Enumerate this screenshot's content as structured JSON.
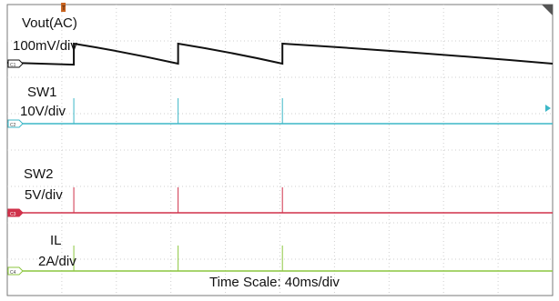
{
  "chart_data": {
    "type": "line",
    "title": "",
    "xlabel": "Time Scale: 40ms/div",
    "time_per_div_ms": 40,
    "x_divisions": 10,
    "y_divisions": 8,
    "x_range_ms": [
      0,
      400
    ],
    "grid": true,
    "trigger_marker": "T",
    "channels": [
      {
        "id": "C1",
        "badge": "C1",
        "name": "Vout(AC)",
        "scale": "100mV/div",
        "color": "#111111",
        "waveform": "sawtooth",
        "dip_times_ms": [
          0,
          48.8,
          125.3,
          201.8
        ],
        "jump_div": 0.55,
        "decay_div": 0.55
      },
      {
        "id": "C2",
        "badge": "C2",
        "name": "SW1",
        "scale": "10V/div",
        "color": "#3cb7c7",
        "waveform": "pulses",
        "pulse_times_ms": [
          48.8,
          125.3,
          201.8
        ],
        "pulse_height_div": 0.7,
        "arrow": "right"
      },
      {
        "id": "C3",
        "badge": "C3",
        "name": "SW2",
        "scale": "5V/div",
        "color": "#d0314a",
        "waveform": "pulses",
        "pulse_times_ms": [
          48.8,
          125.3,
          201.8
        ],
        "pulse_height_div": 0.7
      },
      {
        "id": "C4",
        "badge": "C4",
        "name": "IL",
        "scale": "2A/div",
        "color": "#8cc63f",
        "waveform": "pulses",
        "pulse_times_ms": [
          48.8,
          125.3,
          201.8
        ],
        "pulse_height_div": 0.7
      }
    ]
  }
}
